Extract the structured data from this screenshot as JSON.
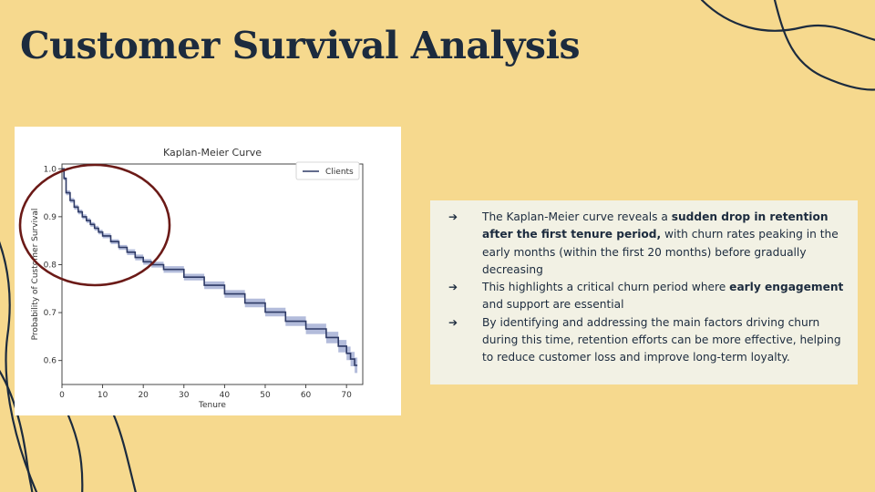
{
  "slide": {
    "title": "Customer Survival Analysis"
  },
  "chart_data": {
    "type": "line",
    "title": "Kaplan-Meier Curve",
    "xlabel": "Tenure",
    "ylabel": "Probability of Customer Survival",
    "xlim": [
      0,
      74
    ],
    "ylim": [
      0.55,
      1.01
    ],
    "xticks": [
      0,
      10,
      20,
      30,
      40,
      50,
      60,
      70
    ],
    "yticks": [
      0.6,
      0.7,
      0.8,
      0.9,
      1.0
    ],
    "xtick_labels": [
      "0",
      "10",
      "20",
      "30",
      "40",
      "50",
      "60",
      "70"
    ],
    "ytick_labels": [
      "0.6",
      "0.7",
      "0.8",
      "0.9",
      "1.0"
    ],
    "legend": {
      "position": "top-right",
      "entries": [
        "Clients"
      ]
    },
    "grid": false,
    "series": [
      {
        "name": "Clients",
        "color": "#2e3a66",
        "ci_color": "#9aa6cf",
        "x": [
          0,
          0.5,
          1,
          2,
          3,
          4,
          5,
          6,
          7,
          8,
          9,
          10,
          12,
          14,
          16,
          18,
          20,
          22,
          25,
          30,
          35,
          40,
          45,
          50,
          55,
          60,
          65,
          68,
          70,
          71,
          72
        ],
        "y": [
          1.0,
          0.98,
          0.95,
          0.934,
          0.92,
          0.91,
          0.9,
          0.892,
          0.884,
          0.876,
          0.868,
          0.86,
          0.848,
          0.836,
          0.826,
          0.815,
          0.806,
          0.8,
          0.79,
          0.774,
          0.757,
          0.739,
          0.72,
          0.701,
          0.682,
          0.666,
          0.648,
          0.63,
          0.615,
          0.603,
          0.59
        ],
        "ci_halfwidth": [
          0,
          0.004,
          0.005,
          0.005,
          0.005,
          0.005,
          0.005,
          0.005,
          0.005,
          0.005,
          0.005,
          0.005,
          0.005,
          0.005,
          0.006,
          0.006,
          0.006,
          0.006,
          0.007,
          0.007,
          0.008,
          0.008,
          0.009,
          0.009,
          0.01,
          0.011,
          0.012,
          0.013,
          0.014,
          0.015,
          0.016
        ]
      }
    ],
    "annotation": {
      "shape": "ellipse",
      "color": "#6b1a17"
    }
  },
  "bullets": [
    {
      "arrow": "➔",
      "parts": [
        {
          "t": "The Kaplan-Meier curve reveals a ",
          "b": false
        },
        {
          "t": "sudden drop in retention after the first tenure period,",
          "b": true
        },
        {
          "t": " with churn rates peaking in the early months (within the first 20 months) before gradually decreasing",
          "b": false
        }
      ]
    },
    {
      "arrow": "➔",
      "parts": [
        {
          "t": "This highlights a critical churn period where ",
          "b": false
        },
        {
          "t": "early engagement",
          "b": true
        },
        {
          "t": " and support are essential",
          "b": false
        }
      ]
    },
    {
      "arrow": "➔",
      "parts": [
        {
          "t": "By identifying and addressing the main factors driving churn during this time, retention efforts can be more effective, helping to reduce customer loss and improve long-term loyalty.",
          "b": false
        }
      ]
    }
  ]
}
